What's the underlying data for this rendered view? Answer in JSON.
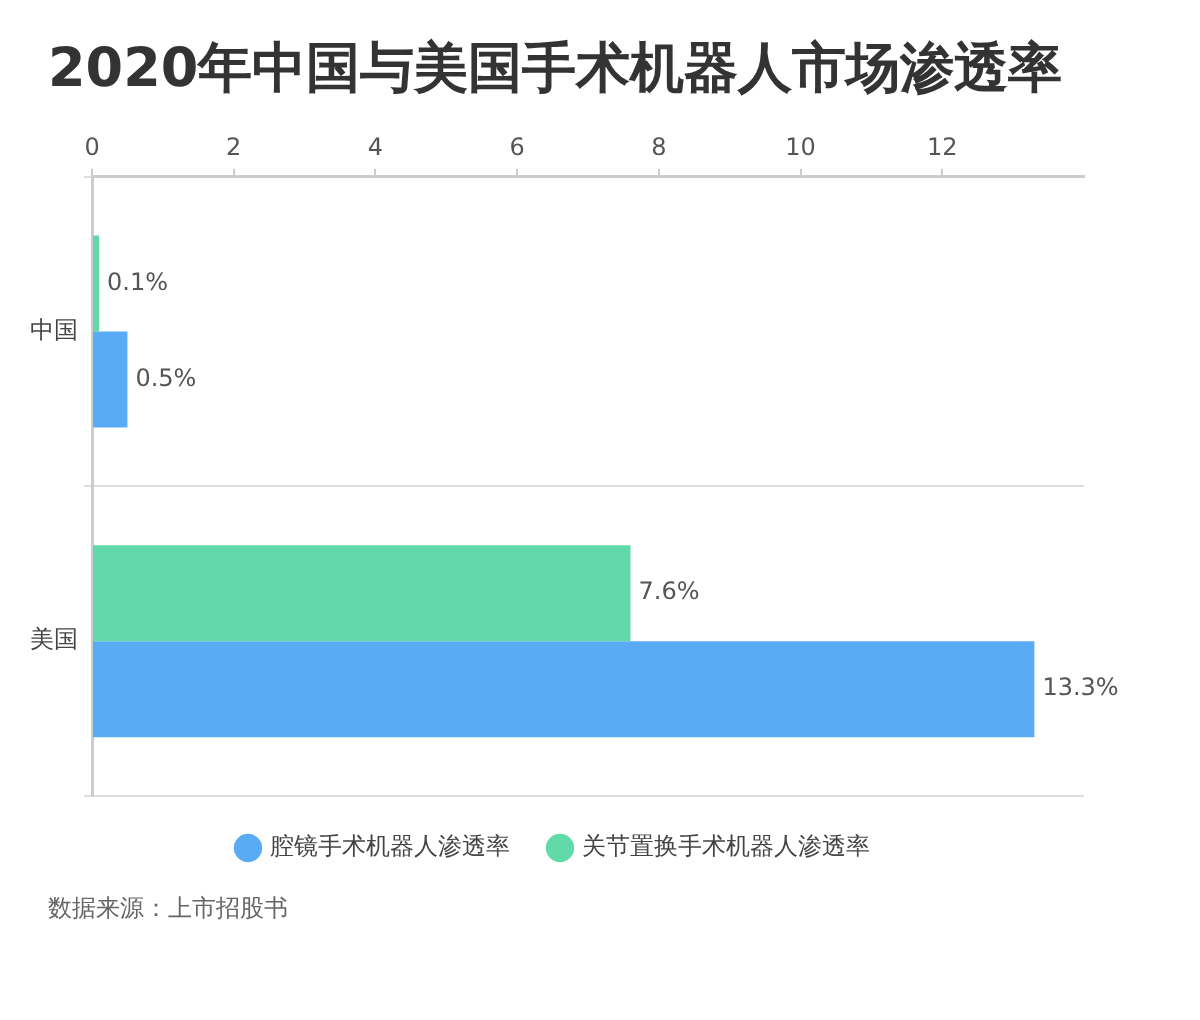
{
  "chart_data": {
    "type": "bar",
    "orientation": "horizontal",
    "title": "2020年中国与美国手术机器人市场渗透率",
    "categories": [
      "中国",
      "美国"
    ],
    "series": [
      {
        "name": "腔镜手术机器人渗透率",
        "color": "#5aabf5",
        "values": [
          0.5,
          13.3
        ],
        "value_labels": [
          "0.5%",
          "13.3%"
        ]
      },
      {
        "name": "关节置换手术机器人渗透率",
        "color": "#62d9a9",
        "values": [
          0.1,
          7.6
        ],
        "value_labels": [
          "0.1%",
          "7.6%"
        ]
      }
    ],
    "xlim": [
      0,
      14
    ],
    "xticks": [
      0,
      2,
      4,
      6,
      8,
      10,
      12
    ],
    "grid": "y",
    "legend": "bottom",
    "annotations": [
      "数据来源：上市招股书"
    ]
  }
}
